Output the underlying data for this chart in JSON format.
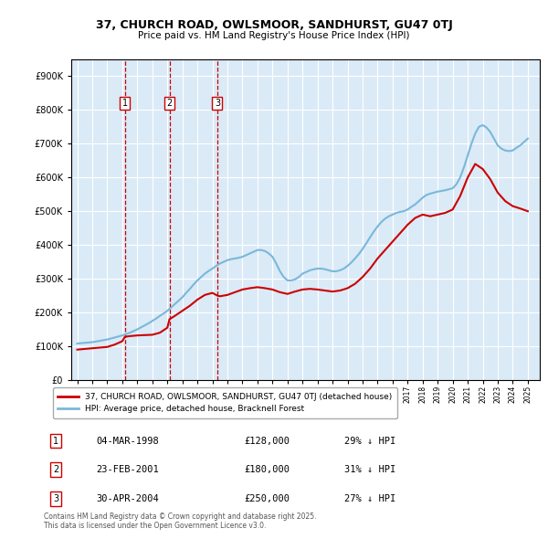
{
  "title": "37, CHURCH ROAD, OWLSMOOR, SANDHURST, GU47 0TJ",
  "subtitle": "Price paid vs. HM Land Registry's House Price Index (HPI)",
  "legend_property": "37, CHURCH ROAD, OWLSMOOR, SANDHURST, GU47 0TJ (detached house)",
  "legend_hpi": "HPI: Average price, detached house, Bracknell Forest",
  "footer": "Contains HM Land Registry data © Crown copyright and database right 2025.\nThis data is licensed under the Open Government Licence v3.0.",
  "transactions": [
    {
      "num": 1,
      "date": "04-MAR-1998",
      "price": 128000,
      "pct": "29%",
      "dir": "↓",
      "year": 1998.17
    },
    {
      "num": 2,
      "date": "23-FEB-2001",
      "price": 180000,
      "pct": "31%",
      "dir": "↓",
      "year": 2001.14
    },
    {
      "num": 3,
      "date": "30-APR-2004",
      "price": 250000,
      "pct": "27%",
      "dir": "↓",
      "year": 2004.33
    }
  ],
  "hpi_color": "#7ab8d9",
  "property_color": "#cc0000",
  "vline_color": "#cc0000",
  "bg_color": "#daeaf7",
  "grid_color": "#ffffff",
  "ylim": [
    0,
    950000
  ],
  "yticks": [
    0,
    100000,
    200000,
    300000,
    400000,
    500000,
    600000,
    700000,
    800000,
    900000
  ],
  "xlim_start": 1994.6,
  "xlim_end": 2025.8,
  "hpi_x": [
    1995.0,
    1995.25,
    1995.5,
    1995.75,
    1996.0,
    1996.25,
    1996.5,
    1996.75,
    1997.0,
    1997.25,
    1997.5,
    1997.75,
    1998.0,
    1998.25,
    1998.5,
    1998.75,
    1999.0,
    1999.25,
    1999.5,
    1999.75,
    2000.0,
    2000.25,
    2000.5,
    2000.75,
    2001.0,
    2001.25,
    2001.5,
    2001.75,
    2002.0,
    2002.25,
    2002.5,
    2002.75,
    2003.0,
    2003.25,
    2003.5,
    2003.75,
    2004.0,
    2004.25,
    2004.5,
    2004.75,
    2005.0,
    2005.25,
    2005.5,
    2005.75,
    2006.0,
    2006.25,
    2006.5,
    2006.75,
    2007.0,
    2007.25,
    2007.5,
    2007.75,
    2008.0,
    2008.25,
    2008.5,
    2008.75,
    2009.0,
    2009.25,
    2009.5,
    2009.75,
    2010.0,
    2010.25,
    2010.5,
    2010.75,
    2011.0,
    2011.25,
    2011.5,
    2011.75,
    2012.0,
    2012.25,
    2012.5,
    2012.75,
    2013.0,
    2013.25,
    2013.5,
    2013.75,
    2014.0,
    2014.25,
    2014.5,
    2014.75,
    2015.0,
    2015.25,
    2015.5,
    2015.75,
    2016.0,
    2016.25,
    2016.5,
    2016.75,
    2017.0,
    2017.25,
    2017.5,
    2017.75,
    2018.0,
    2018.25,
    2018.5,
    2018.75,
    2019.0,
    2019.25,
    2019.5,
    2019.75,
    2020.0,
    2020.25,
    2020.5,
    2020.75,
    2021.0,
    2021.25,
    2021.5,
    2021.75,
    2022.0,
    2022.25,
    2022.5,
    2022.75,
    2023.0,
    2023.25,
    2023.5,
    2023.75,
    2024.0,
    2024.25,
    2024.5,
    2024.75,
    2025.0
  ],
  "hpi_y": [
    108000,
    109000,
    110000,
    111000,
    112000,
    114000,
    116000,
    118000,
    120000,
    123000,
    126000,
    129000,
    132000,
    136000,
    140000,
    145000,
    150000,
    156000,
    162000,
    168000,
    175000,
    182000,
    190000,
    197000,
    205000,
    215000,
    225000,
    235000,
    245000,
    258000,
    270000,
    283000,
    295000,
    305000,
    315000,
    323000,
    330000,
    338000,
    345000,
    350000,
    355000,
    358000,
    360000,
    362000,
    365000,
    370000,
    375000,
    380000,
    385000,
    385000,
    382000,
    375000,
    365000,
    345000,
    322000,
    305000,
    295000,
    295000,
    298000,
    305000,
    315000,
    320000,
    325000,
    328000,
    330000,
    330000,
    328000,
    325000,
    322000,
    322000,
    325000,
    330000,
    338000,
    348000,
    360000,
    373000,
    388000,
    405000,
    423000,
    440000,
    455000,
    468000,
    478000,
    485000,
    490000,
    495000,
    498000,
    500000,
    505000,
    513000,
    520000,
    530000,
    540000,
    548000,
    552000,
    555000,
    558000,
    560000,
    562000,
    565000,
    568000,
    580000,
    600000,
    630000,
    665000,
    700000,
    730000,
    750000,
    755000,
    748000,
    735000,
    715000,
    695000,
    685000,
    680000,
    678000,
    680000,
    688000,
    695000,
    705000,
    715000
  ],
  "prop_x": [
    1995.0,
    1995.5,
    1996.0,
    1996.5,
    1997.0,
    1997.5,
    1998.0,
    1998.17,
    1998.5,
    1999.0,
    1999.5,
    2000.0,
    2000.5,
    2001.0,
    2001.14,
    2001.5,
    2002.0,
    2002.5,
    2003.0,
    2003.5,
    2004.0,
    2004.33,
    2004.5,
    2005.0,
    2005.5,
    2006.0,
    2006.5,
    2007.0,
    2007.5,
    2008.0,
    2008.5,
    2009.0,
    2009.5,
    2010.0,
    2010.5,
    2011.0,
    2011.5,
    2012.0,
    2012.5,
    2013.0,
    2013.5,
    2014.0,
    2014.5,
    2015.0,
    2015.5,
    2016.0,
    2016.5,
    2017.0,
    2017.5,
    2018.0,
    2018.5,
    2019.0,
    2019.5,
    2020.0,
    2020.5,
    2021.0,
    2021.5,
    2022.0,
    2022.5,
    2023.0,
    2023.5,
    2024.0,
    2024.5,
    2025.0
  ],
  "prop_y": [
    90000,
    92000,
    94000,
    96000,
    98000,
    105000,
    115000,
    128000,
    130000,
    132000,
    133000,
    134000,
    140000,
    155000,
    180000,
    190000,
    205000,
    220000,
    238000,
    252000,
    258000,
    250000,
    248000,
    252000,
    260000,
    268000,
    272000,
    275000,
    272000,
    268000,
    260000,
    255000,
    262000,
    268000,
    270000,
    268000,
    265000,
    262000,
    265000,
    272000,
    285000,
    305000,
    330000,
    360000,
    385000,
    410000,
    435000,
    460000,
    480000,
    490000,
    485000,
    490000,
    495000,
    505000,
    545000,
    600000,
    640000,
    625000,
    595000,
    555000,
    530000,
    515000,
    508000,
    500000
  ]
}
